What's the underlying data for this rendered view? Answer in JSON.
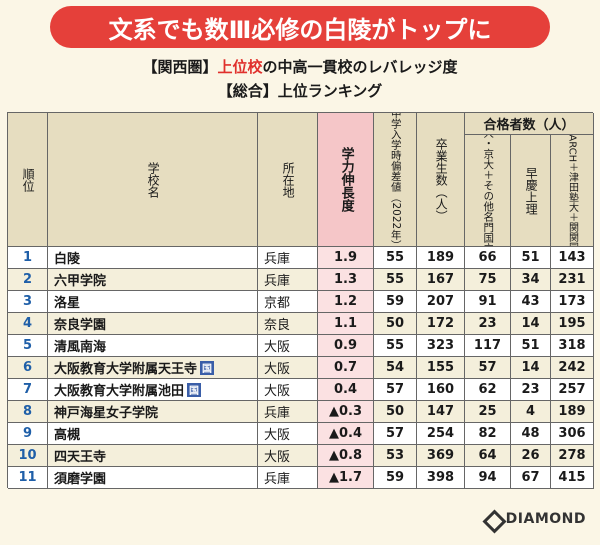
{
  "banner": {
    "text": "文系でも数Ⅲ必修の白陵がトップに"
  },
  "subtitle": {
    "region": "【関西圏】",
    "highlight": "上位校",
    "rest": "の中高一貫校のレバレッジ度",
    "line2": "【総合】上位ランキング"
  },
  "header": {
    "rank": "順位",
    "school": "学校名",
    "location": "所在地",
    "growth": "学力伸長度",
    "deviation": "中学入学時偏差値（2022年）",
    "graduates": "卒業生数（人）",
    "passers_group": "合格者数（人）",
    "todai_kyodai": "東大・京大＋その他名門国立大",
    "waseda_keio": "早慶上理",
    "gmarch": "GMARCH＋津田塾大＋関関同立"
  },
  "rows": [
    {
      "rank": "1",
      "school": "白陵",
      "kokuritsu": "",
      "pref": "兵庫",
      "growth": "1.9",
      "deviation": "55",
      "graduates": "189",
      "todai": "66",
      "soukei": "51",
      "gmarch": "143"
    },
    {
      "rank": "2",
      "school": "六甲学院",
      "kokuritsu": "",
      "pref": "兵庫",
      "growth": "1.3",
      "deviation": "55",
      "graduates": "167",
      "todai": "75",
      "soukei": "34",
      "gmarch": "231"
    },
    {
      "rank": "3",
      "school": "洛星",
      "kokuritsu": "",
      "pref": "京都",
      "growth": "1.2",
      "deviation": "59",
      "graduates": "207",
      "todai": "91",
      "soukei": "43",
      "gmarch": "173"
    },
    {
      "rank": "4",
      "school": "奈良学園",
      "kokuritsu": "",
      "pref": "奈良",
      "growth": "1.1",
      "deviation": "50",
      "graduates": "172",
      "todai": "23",
      "soukei": "14",
      "gmarch": "195"
    },
    {
      "rank": "5",
      "school": "清風南海",
      "kokuritsu": "",
      "pref": "大阪",
      "growth": "0.9",
      "deviation": "55",
      "graduates": "323",
      "todai": "117",
      "soukei": "51",
      "gmarch": "318"
    },
    {
      "rank": "6",
      "school": "大阪教育大学附属天王寺",
      "kokuritsu": "国",
      "pref": "大阪",
      "growth": "0.7",
      "deviation": "54",
      "graduates": "155",
      "todai": "57",
      "soukei": "14",
      "gmarch": "242"
    },
    {
      "rank": "7",
      "school": "大阪教育大学附属池田",
      "kokuritsu": "国",
      "pref": "大阪",
      "growth": "0.4",
      "deviation": "57",
      "graduates": "160",
      "todai": "62",
      "soukei": "23",
      "gmarch": "257"
    },
    {
      "rank": "8",
      "school": "神戸海星女子学院",
      "kokuritsu": "",
      "pref": "兵庫",
      "growth": "▲0.3",
      "deviation": "50",
      "graduates": "147",
      "todai": "25",
      "soukei": "4",
      "gmarch": "189"
    },
    {
      "rank": "9",
      "school": "高槻",
      "kokuritsu": "",
      "pref": "大阪",
      "growth": "▲0.4",
      "deviation": "57",
      "graduates": "254",
      "todai": "82",
      "soukei": "48",
      "gmarch": "306"
    },
    {
      "rank": "10",
      "school": "四天王寺",
      "kokuritsu": "",
      "pref": "大阪",
      "growth": "▲0.8",
      "deviation": "53",
      "graduates": "369",
      "todai": "64",
      "soukei": "26",
      "gmarch": "278"
    },
    {
      "rank": "11",
      "school": "須磨学園",
      "kokuritsu": "",
      "pref": "兵庫",
      "growth": "▲1.7",
      "deviation": "59",
      "graduates": "398",
      "todai": "94",
      "soukei": "67",
      "gmarch": "415"
    }
  ],
  "logo": {
    "text": "DIAMOND"
  }
}
